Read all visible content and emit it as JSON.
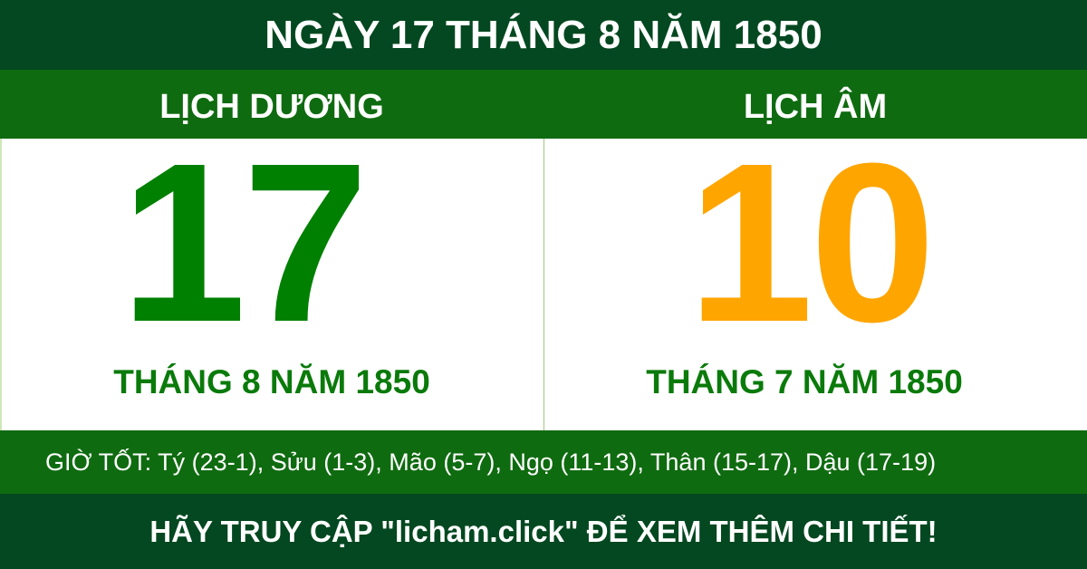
{
  "title": "NGÀY 17 THÁNG 8 NĂM 1850",
  "solar": {
    "label": "LỊCH DƯƠNG",
    "day": "17",
    "month_year": "THÁNG 8 NĂM 1850"
  },
  "lunar": {
    "label": "LỊCH ÂM",
    "day": "10",
    "month_year": "THÁNG 7 NĂM 1850"
  },
  "good_hours": "GIỜ TỐT: Tý (23-1), Sửu (1-3), Mão (5-7), Ngọ (11-13), Thân (15-17), Dậu (17-19)",
  "footer": "HÃY TRUY CẬP \"licham.click\" ĐỂ XEM THÊM CHI TIẾT!",
  "colors": {
    "dark_green": "#034820",
    "band_green": "#0f6b10",
    "solar_number": "#008000",
    "lunar_number": "#ffa500",
    "subtitle": "#0a7a0a"
  }
}
